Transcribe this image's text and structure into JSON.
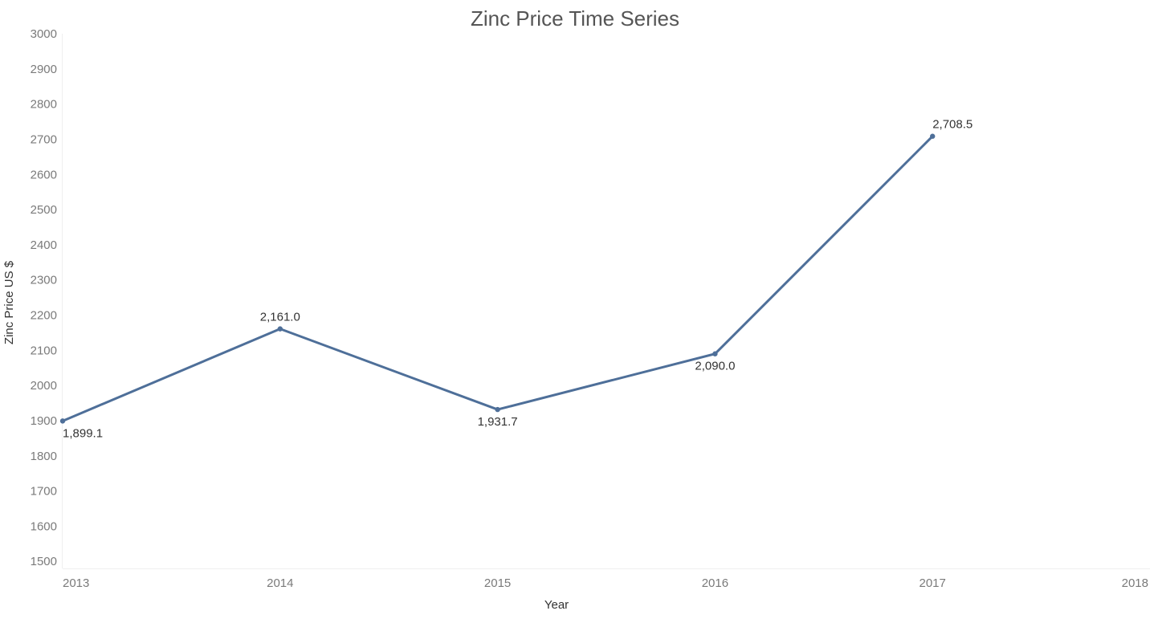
{
  "chart_data": {
    "type": "line",
    "title": "Zinc Price Time Series",
    "xlabel": "Year",
    "ylabel": "Zinc Price US $",
    "x": [
      2013,
      2014,
      2015,
      2016,
      2017
    ],
    "x_ticks": [
      "2013",
      "2014",
      "2015",
      "2016",
      "2017",
      "2018"
    ],
    "xlim": [
      2013,
      2018
    ],
    "ylim": [
      1480,
      3000
    ],
    "y_ticks": [
      1500,
      1600,
      1700,
      1800,
      1900,
      2000,
      2100,
      2200,
      2300,
      2400,
      2500,
      2600,
      2700,
      2800,
      2900,
      3000
    ],
    "series": [
      {
        "values": [
          1899.1,
          2161.0,
          1931.7,
          2090.0,
          2708.5
        ],
        "labels": [
          "1,899.1",
          "2,161.0",
          "1,931.7",
          "2,090.0",
          "2,708.5"
        ],
        "label_position": [
          "below",
          "above",
          "below",
          "below",
          "above"
        ],
        "color": "#4e6f99"
      }
    ],
    "grid": false,
    "legend": "none"
  }
}
